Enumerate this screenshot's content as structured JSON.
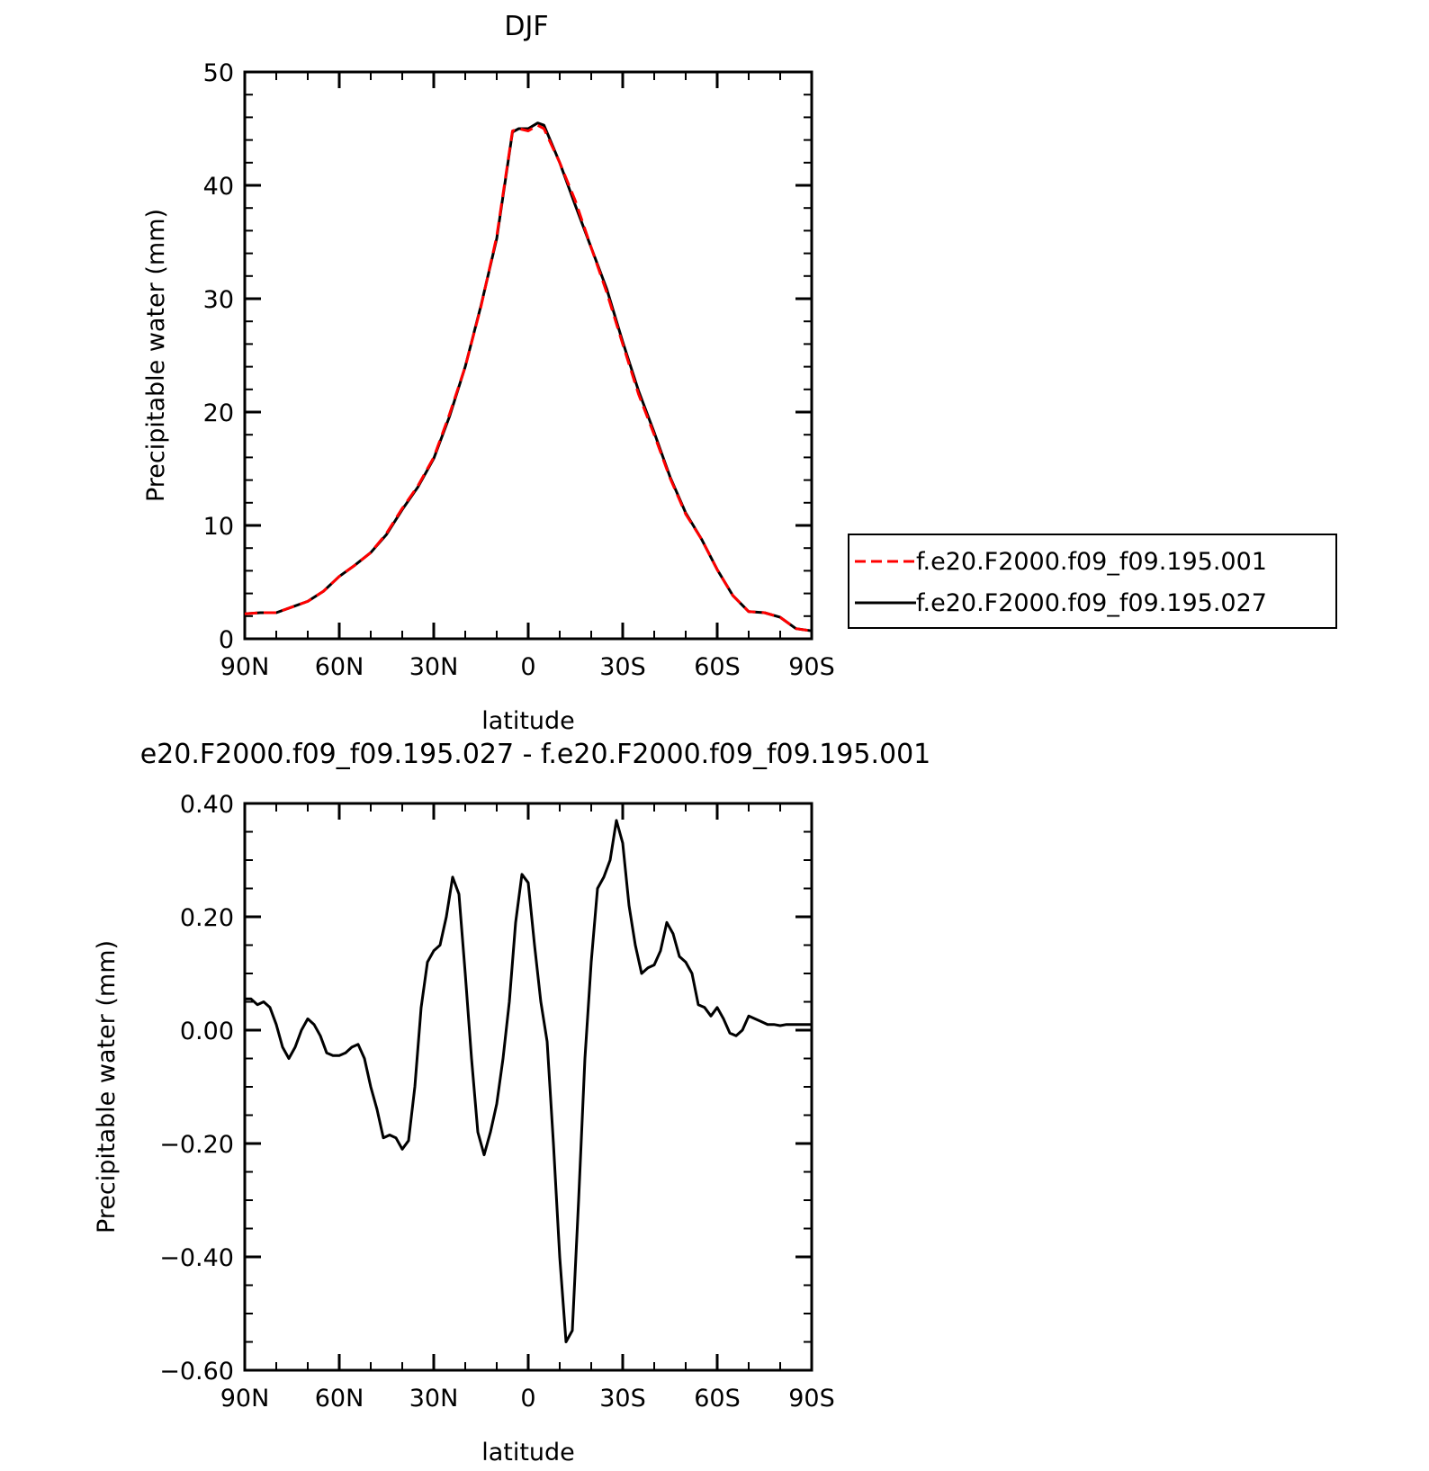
{
  "chart_data": [
    {
      "type": "line",
      "title": "DJF",
      "xlabel": "latitude",
      "ylabel": "Precipitable water (mm)",
      "x_ticks": [
        "90N",
        "60N",
        "30N",
        "0",
        "30S",
        "60S",
        "90S"
      ],
      "y_ticks": [
        "0",
        "10",
        "20",
        "30",
        "40",
        "50"
      ],
      "xlim": [
        -90,
        90
      ],
      "ylim": [
        0,
        50
      ],
      "legend_position": "right",
      "series": [
        {
          "name": "f.e20.F2000.f09_f09.195.001",
          "color": "#ff0000",
          "dash": "dashed",
          "x": [
            -90,
            -85,
            -80,
            -75,
            -70,
            -65,
            -60,
            -55,
            -50,
            -45,
            -40,
            -35,
            -30,
            -25,
            -20,
            -15,
            -10,
            -5,
            -3,
            0,
            3,
            5,
            10,
            15,
            20,
            25,
            30,
            35,
            40,
            45,
            50,
            55,
            60,
            65,
            70,
            75,
            80,
            85,
            90
          ],
          "y": [
            2.2,
            2.3,
            2.3,
            2.8,
            3.3,
            4.2,
            5.5,
            6.5,
            7.6,
            9.3,
            11.5,
            13.5,
            16.0,
            19.8,
            24.0,
            29.3,
            35.5,
            44.8,
            45.0,
            44.8,
            45.3,
            45.0,
            42.0,
            38.6,
            34.5,
            30.5,
            26.0,
            21.6,
            18.0,
            14.2,
            11.0,
            8.8,
            6.1,
            3.8,
            2.4,
            2.3,
            1.9,
            0.9,
            0.7
          ]
        },
        {
          "name": "f.e20.F2000.f09_f09.195.027",
          "color": "#000000",
          "dash": "solid",
          "x": [
            -90,
            -85,
            -80,
            -75,
            -70,
            -65,
            -60,
            -55,
            -50,
            -45,
            -40,
            -35,
            -30,
            -25,
            -20,
            -15,
            -10,
            -5,
            -3,
            0,
            3,
            5,
            10,
            15,
            20,
            25,
            30,
            35,
            40,
            45,
            50,
            55,
            60,
            65,
            70,
            75,
            80,
            85,
            90
          ],
          "y": [
            2.2,
            2.3,
            2.3,
            2.8,
            3.3,
            4.2,
            5.5,
            6.5,
            7.6,
            9.2,
            11.4,
            13.4,
            15.9,
            19.6,
            24.0,
            29.4,
            35.3,
            44.7,
            45.0,
            45.0,
            45.5,
            45.3,
            42.0,
            38.2,
            34.5,
            30.8,
            26.2,
            21.9,
            18.2,
            14.3,
            11.1,
            8.8,
            6.1,
            3.8,
            2.4,
            2.3,
            1.9,
            0.9,
            0.7
          ]
        }
      ]
    },
    {
      "type": "line",
      "title": "e20.F2000.f09_f09.195.027 - f.e20.F2000.f09_f09.195.001",
      "xlabel": "latitude",
      "ylabel": "Precipitable water (mm)",
      "x_ticks": [
        "90N",
        "60N",
        "30N",
        "0",
        "30S",
        "60S",
        "90S"
      ],
      "y_ticks": [
        "-0.60",
        "-0.40",
        "-0.20",
        "0.00",
        "0.20",
        "0.40"
      ],
      "xlim": [
        -90,
        90
      ],
      "ylim": [
        -0.6,
        0.4
      ],
      "series": [
        {
          "color": "#000000",
          "x": [
            -90,
            -88,
            -86,
            -84,
            -82,
            -80,
            -78,
            -76,
            -74,
            -72,
            -70,
            -68,
            -66,
            -64,
            -62,
            -60,
            -58,
            -56,
            -54,
            -52,
            -50,
            -48,
            -46,
            -44,
            -42,
            -40,
            -38,
            -36,
            -34,
            -32,
            -30,
            -28,
            -26,
            -24,
            -22,
            -20,
            -18,
            -16,
            -14,
            -12,
            -10,
            -8,
            -6,
            -4,
            -2,
            0,
            2,
            4,
            6,
            8,
            10,
            12,
            14,
            16,
            18,
            20,
            22,
            24,
            26,
            28,
            30,
            32,
            34,
            36,
            38,
            40,
            42,
            44,
            46,
            48,
            50,
            52,
            54,
            56,
            58,
            60,
            62,
            64,
            66,
            68,
            70,
            72,
            74,
            76,
            78,
            80,
            82,
            84,
            86,
            88,
            90
          ],
          "y": [
            0.055,
            0.055,
            0.045,
            0.05,
            0.04,
            0.01,
            -0.03,
            -0.05,
            -0.03,
            0.0,
            0.02,
            0.01,
            -0.01,
            -0.04,
            -0.045,
            -0.045,
            -0.04,
            -0.03,
            -0.025,
            -0.05,
            -0.1,
            -0.14,
            -0.19,
            -0.185,
            -0.19,
            -0.21,
            -0.195,
            -0.1,
            0.04,
            0.12,
            0.14,
            0.15,
            0.2,
            0.27,
            0.24,
            0.1,
            -0.05,
            -0.18,
            -0.22,
            -0.18,
            -0.13,
            -0.05,
            0.05,
            0.19,
            0.275,
            0.26,
            0.15,
            0.05,
            -0.02,
            -0.2,
            -0.4,
            -0.55,
            -0.53,
            -0.3,
            -0.05,
            0.12,
            0.25,
            0.27,
            0.3,
            0.37,
            0.33,
            0.22,
            0.15,
            0.1,
            0.11,
            0.115,
            0.14,
            0.19,
            0.17,
            0.13,
            0.12,
            0.1,
            0.045,
            0.04,
            0.025,
            0.04,
            0.02,
            -0.005,
            -0.01,
            0.0,
            0.025,
            0.02,
            0.015,
            0.01,
            0.01,
            0.008,
            0.01,
            0.01,
            0.01,
            0.01,
            0.01
          ]
        }
      ]
    }
  ]
}
